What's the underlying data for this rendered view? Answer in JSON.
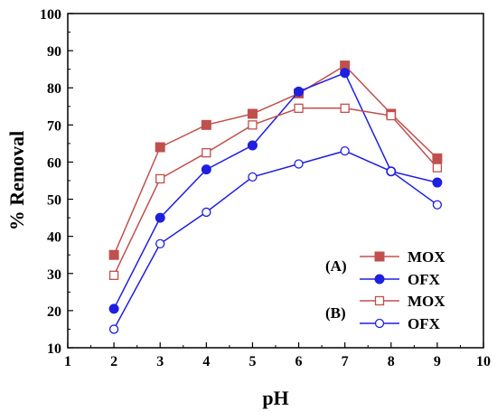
{
  "chart_data": {
    "type": "line",
    "xlabel": "pH",
    "ylabel": "% Removal",
    "xlim": [
      1,
      10
    ],
    "ylim": [
      10,
      100
    ],
    "x_ticks": [
      "1",
      "2",
      "3",
      "4",
      "5",
      "6",
      "7",
      "8",
      "9",
      "10"
    ],
    "y_ticks": [
      "10",
      "20",
      "30",
      "40",
      "50",
      "60",
      "70",
      "80",
      "90",
      "100"
    ],
    "x": [
      2,
      3,
      4,
      5,
      6,
      7,
      8,
      9
    ],
    "grid": false,
    "legend_position": "bottom-right",
    "legend_groups": [
      "(A)",
      "(B)"
    ],
    "series": [
      {
        "name": "MOX",
        "group": "(A)",
        "color": "#c0504d",
        "marker": "filled-square",
        "values": [
          35,
          64,
          70,
          73,
          78.5,
          86,
          73,
          61
        ]
      },
      {
        "name": "OFX",
        "group": "(A)",
        "color": "#1f1fe0",
        "marker": "filled-circle",
        "values": [
          20.5,
          45,
          58,
          64.5,
          79,
          84,
          57.5,
          54.5
        ]
      },
      {
        "name": "MOX",
        "group": "(B)",
        "color": "#c0504d",
        "marker": "open-square",
        "values": [
          29.5,
          55.5,
          62.5,
          70,
          74.5,
          74.5,
          72.5,
          58.5
        ]
      },
      {
        "name": "OFX",
        "group": "(B)",
        "color": "#1f1fe0",
        "marker": "open-circle",
        "values": [
          15,
          38,
          46.5,
          56,
          59.5,
          63,
          57.5,
          48.5
        ]
      }
    ]
  }
}
